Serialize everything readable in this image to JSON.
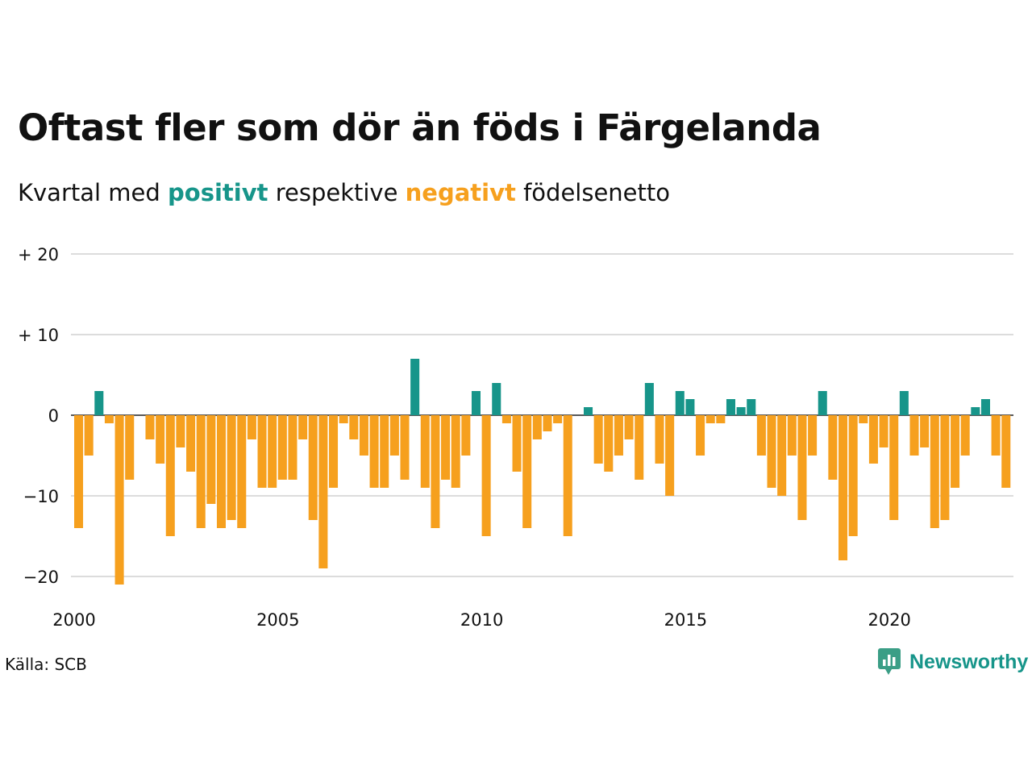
{
  "title": "Oftast fler som dör än föds i Färgelanda",
  "subtitle": {
    "pre": "Kvartal med",
    "positive": "positivt",
    "mid": "respektive",
    "negative": "negativt",
    "post": "födelsenetto"
  },
  "source": "Källa: SCB",
  "brand": {
    "name": "Newsworthy",
    "icon": "newsworthy-logo-icon"
  },
  "colors": {
    "positive": "#17958a",
    "negative": "#f6a01e",
    "grid": "#dcdcdc",
    "zero": "#222222"
  },
  "chart_data": {
    "type": "bar",
    "title": "Oftast fler som dör än föds i Färgelanda",
    "xlabel": "",
    "ylabel": "",
    "ylim": [
      -22,
      20
    ],
    "xlim": [
      2000,
      2023
    ],
    "y_ticks": [
      {
        "value": 20,
        "label": "+ 20"
      },
      {
        "value": 10,
        "label": "+ 10"
      },
      {
        "value": 0,
        "label": "0"
      },
      {
        "value": -10,
        "label": "−10"
      },
      {
        "value": -20,
        "label": "−20"
      }
    ],
    "x_ticks": [
      {
        "value": 2000,
        "label": "2000"
      },
      {
        "value": 2005,
        "label": "2005"
      },
      {
        "value": 2010,
        "label": "2010"
      },
      {
        "value": 2015,
        "label": "2015"
      },
      {
        "value": 2020,
        "label": "2020"
      }
    ],
    "grid": true,
    "series": [
      {
        "start_year": 2000,
        "values": [
          -14,
          -5,
          3,
          -1,
          -21,
          -8,
          0,
          -3,
          -6,
          -15,
          -4,
          -7,
          -14,
          -11,
          -14,
          -13,
          -14,
          -3,
          -9,
          -9,
          -8,
          -8,
          -3,
          -13,
          -19,
          -9,
          -1,
          -3,
          -5,
          -9,
          -9,
          -5,
          -8,
          7,
          -9,
          -14,
          -8,
          -9,
          -5,
          3,
          -15,
          4,
          -1,
          -7,
          -14,
          -3,
          -2,
          -1,
          -15,
          0,
          1,
          -6,
          -7,
          -5,
          -3,
          -8,
          4,
          -6,
          -10,
          3,
          2,
          -5,
          -1,
          -1,
          2,
          1,
          2,
          -5,
          -9,
          -10,
          -5,
          -13,
          -5,
          3,
          -8,
          -18,
          -15,
          -1,
          -6,
          -4,
          -13,
          3,
          -5,
          -4,
          -14,
          -13,
          -9,
          -5,
          1,
          2,
          -5,
          -9
        ]
      }
    ]
  }
}
